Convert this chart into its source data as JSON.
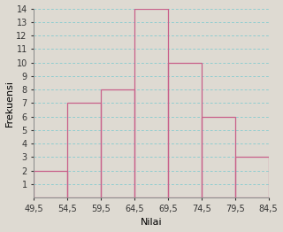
{
  "bin_edges": [
    49.5,
    54.5,
    59.5,
    64.5,
    69.5,
    74.5,
    79.5,
    84.5
  ],
  "frequencies": [
    2,
    7,
    8,
    14,
    10,
    6,
    3
  ],
  "bar_color": "#c8608a",
  "xlabel": "Nilai",
  "ylabel": "Frekuensi",
  "ylim_min": 0,
  "ylim_max": 14,
  "yticks": [
    1,
    2,
    3,
    4,
    5,
    6,
    7,
    8,
    9,
    10,
    11,
    12,
    13,
    14
  ],
  "xtick_labels": [
    "49,5",
    "54,5",
    "59,5",
    "64,5",
    "69,5",
    "74,5",
    "79,5",
    "84,5"
  ],
  "grid_color": "#70c8d0",
  "background_color": "#dedad2",
  "xlabel_fontsize": 8,
  "ylabel_fontsize": 8,
  "tick_fontsize": 7
}
